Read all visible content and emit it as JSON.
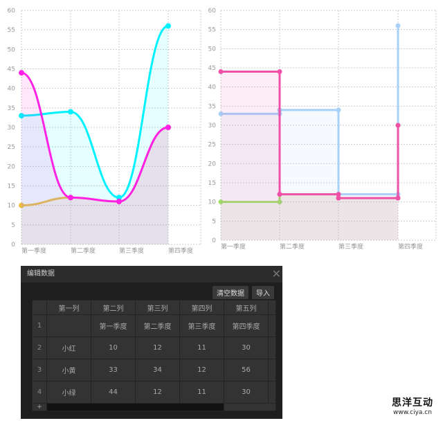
{
  "chart_data": [
    {
      "type": "area",
      "smooth": true,
      "categories": [
        "第一季度",
        "第二季度",
        "第三季度",
        "第四季度"
      ],
      "ylim": [
        0,
        60
      ],
      "yticks": [
        0,
        5,
        10,
        15,
        20,
        25,
        30,
        35,
        40,
        45,
        50,
        55,
        60
      ],
      "grid": true,
      "series": [
        {
          "values": [
            10,
            12,
            11,
            30
          ],
          "color": "#f0c040"
        },
        {
          "values": [
            33,
            34,
            12,
            56
          ],
          "color": "#00f2ff"
        },
        {
          "values": [
            44,
            12,
            11,
            30
          ],
          "color": "#ff22e6"
        }
      ]
    },
    {
      "type": "step-area",
      "categories": [
        "第一季度",
        "第二季度",
        "第三季度",
        "第四季度"
      ],
      "ylim": [
        0,
        60
      ],
      "yticks": [
        0,
        5,
        10,
        15,
        20,
        25,
        30,
        35,
        40,
        45,
        50,
        55,
        60
      ],
      "grid": true,
      "series": [
        {
          "values": [
            10,
            12,
            11,
            30
          ],
          "color": "#9fe060"
        },
        {
          "values": [
            33,
            34,
            12,
            56
          ],
          "color": "#a8d0f8"
        },
        {
          "values": [
            44,
            12,
            11,
            30
          ],
          "color": "#f050a8"
        }
      ]
    }
  ],
  "dialog": {
    "title": "编辑数据",
    "close": "✕",
    "clear_label": "清空数据",
    "import_label": "导入",
    "headers": [
      "第一列",
      "第二列",
      "第三列",
      "第四列",
      "第五列"
    ],
    "rows": [
      [
        "1",
        "",
        "第一季度",
        "第二季度",
        "第三季度",
        "第四季度"
      ],
      [
        "2",
        "小红",
        "10",
        "12",
        "11",
        "30"
      ],
      [
        "3",
        "小黄",
        "33",
        "34",
        "12",
        "56"
      ],
      [
        "4",
        "小绿",
        "44",
        "12",
        "11",
        "30"
      ]
    ],
    "add": "+"
  },
  "watermark": {
    "name": "思洋互动",
    "url": "www.ciya.cn"
  }
}
